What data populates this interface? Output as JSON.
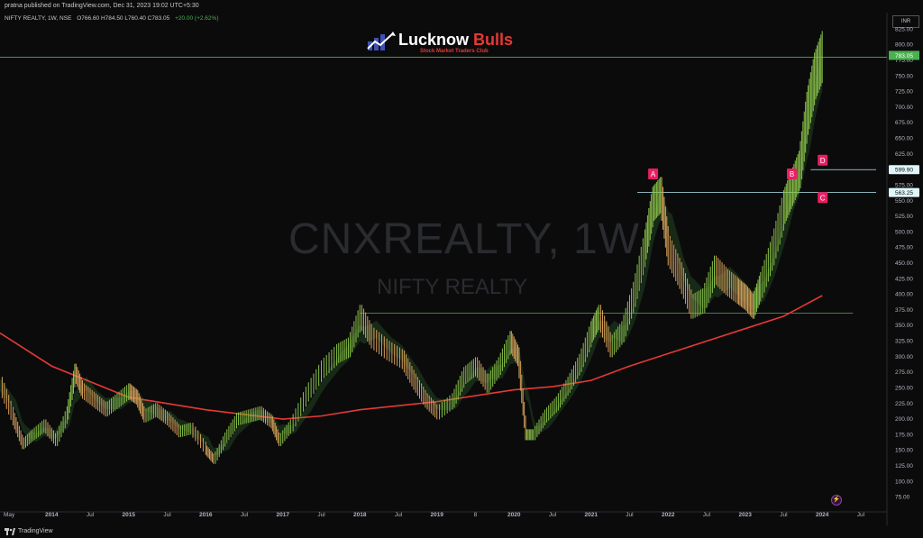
{
  "header": {
    "published_by": "pratna published on TradingView.com, Dec 31, 2023 19:02 UTC+5:30",
    "symbol": "NIFTY REALTY, 1W, NSE",
    "ohlc": "O766.60 H784.50 L760.40 C783.05",
    "change": "+20.00 (+2.62%)"
  },
  "logo": {
    "brand_1": "Lucknow",
    "brand_2": "Bulls",
    "tagline": "Stock Market Traders Club"
  },
  "watermark": {
    "title": "CNXREALTY, 1W",
    "subtitle": "NIFTY REALTY"
  },
  "currency": "INR",
  "footer": {
    "brand": "TradingView"
  },
  "colors": {
    "up": "#8bc34a",
    "down": "#d8a25a",
    "ma_long": "#e53935",
    "level": "#4caf50",
    "label": "#e91e63"
  },
  "chart_data": {
    "type": "line",
    "title": "CNXREALTY, 1W",
    "y_ticks": [
      825,
      800,
      775,
      750,
      725,
      700,
      675,
      650,
      625,
      600,
      575,
      550,
      525,
      500,
      475,
      450,
      425,
      400,
      375,
      350,
      325,
      300,
      275,
      250,
      225,
      200,
      175,
      150,
      125,
      100,
      75
    ],
    "x_ticks": [
      "May",
      "2014",
      "Jul",
      "2015",
      "Jul",
      "2016",
      "Jul",
      "2017",
      "Jul",
      "2018",
      "Jul",
      "2019",
      "8",
      "2020",
      "Jul",
      "2021",
      "Jul",
      "2022",
      "Jul",
      "2023",
      "Jul",
      "2024",
      "Jul"
    ],
    "x_tick_dates": [
      2013.33,
      2014.0,
      2014.5,
      2015.0,
      2015.5,
      2016.0,
      2016.5,
      2017.0,
      2017.5,
      2018.0,
      2018.5,
      2019.0,
      2019.5,
      2020.0,
      2020.5,
      2021.0,
      2021.5,
      2022.0,
      2022.5,
      2023.0,
      2023.5,
      2024.0,
      2024.5
    ],
    "ylim": [
      60,
      840
    ],
    "xlim": [
      2013.33,
      2024.84
    ],
    "price_series": {
      "name": "",
      "x": [
        2013.33,
        2013.5,
        2013.62,
        2013.75,
        2013.9,
        2014.05,
        2014.2,
        2014.3,
        2014.4,
        2014.55,
        2014.7,
        2014.85,
        2015.0,
        2015.1,
        2015.2,
        2015.35,
        2015.5,
        2015.65,
        2015.8,
        2016.0,
        2016.1,
        2016.25,
        2016.4,
        2016.55,
        2016.7,
        2016.85,
        2016.95,
        2017.1,
        2017.3,
        2017.5,
        2017.7,
        2017.85,
        2018.0,
        2018.15,
        2018.35,
        2018.55,
        2018.7,
        2018.85,
        2019.0,
        2019.2,
        2019.35,
        2019.5,
        2019.65,
        2019.8,
        2019.95,
        2020.05,
        2020.15,
        2020.25,
        2020.4,
        2020.55,
        2020.7,
        2020.85,
        2021.0,
        2021.1,
        2021.25,
        2021.4,
        2021.55,
        2021.7,
        2021.8,
        2021.9,
        2022.0,
        2022.15,
        2022.3,
        2022.45,
        2022.6,
        2022.75,
        2022.9,
        2023.0,
        2023.1,
        2023.2,
        2023.35,
        2023.5,
        2023.6,
        2023.7,
        2023.8,
        2023.9,
        2024.0
      ],
      "y": [
        255,
        200,
        160,
        175,
        190,
        165,
        210,
        275,
        245,
        230,
        215,
        230,
        245,
        235,
        205,
        215,
        200,
        180,
        185,
        150,
        135,
        170,
        200,
        205,
        210,
        195,
        165,
        190,
        240,
        280,
        305,
        315,
        365,
        330,
        310,
        295,
        260,
        230,
        210,
        230,
        270,
        285,
        255,
        285,
        325,
        300,
        175,
        175,
        205,
        225,
        255,
        290,
        340,
        365,
        315,
        340,
        400,
        480,
        545,
        560,
        470,
        430,
        380,
        390,
        440,
        420,
        405,
        395,
        380,
        415,
        470,
        540,
        570,
        600,
        690,
        750,
        783
      ]
    },
    "ma_long": {
      "name": "",
      "x": [
        2013.33,
        2014.0,
        2015.0,
        2016.0,
        2017.0,
        2017.5,
        2018.0,
        2019.0,
        2020.0,
        2020.5,
        2021.0,
        2021.5,
        2022.0,
        2022.5,
        2023.0,
        2023.5,
        2024.0
      ],
      "y": [
        338,
        285,
        235,
        215,
        200,
        205,
        215,
        228,
        247,
        252,
        262,
        285,
        305,
        325,
        345,
        365,
        398
      ]
    },
    "levels": [
      {
        "value": 780,
        "x_start": 2013.33,
        "x_end": 2024.84
      },
      {
        "value": 370,
        "x_start": 2018.0,
        "x_end": 2024.4
      },
      {
        "value": 563.25,
        "x_start": 2021.6,
        "x_end": 2024.7,
        "label": "563.25"
      },
      {
        "value": 599.9,
        "x_start": 2023.85,
        "x_end": 2024.7,
        "label": "599.90"
      }
    ],
    "last_price": "783.05",
    "annotations": [
      {
        "text": "A",
        "x": 2021.8,
        "y": 593
      },
      {
        "text": "B",
        "x": 2023.6,
        "y": 593
      },
      {
        "text": "C",
        "x": 2024.0,
        "y": 555
      },
      {
        "text": "D",
        "x": 2024.0,
        "y": 615
      }
    ]
  }
}
